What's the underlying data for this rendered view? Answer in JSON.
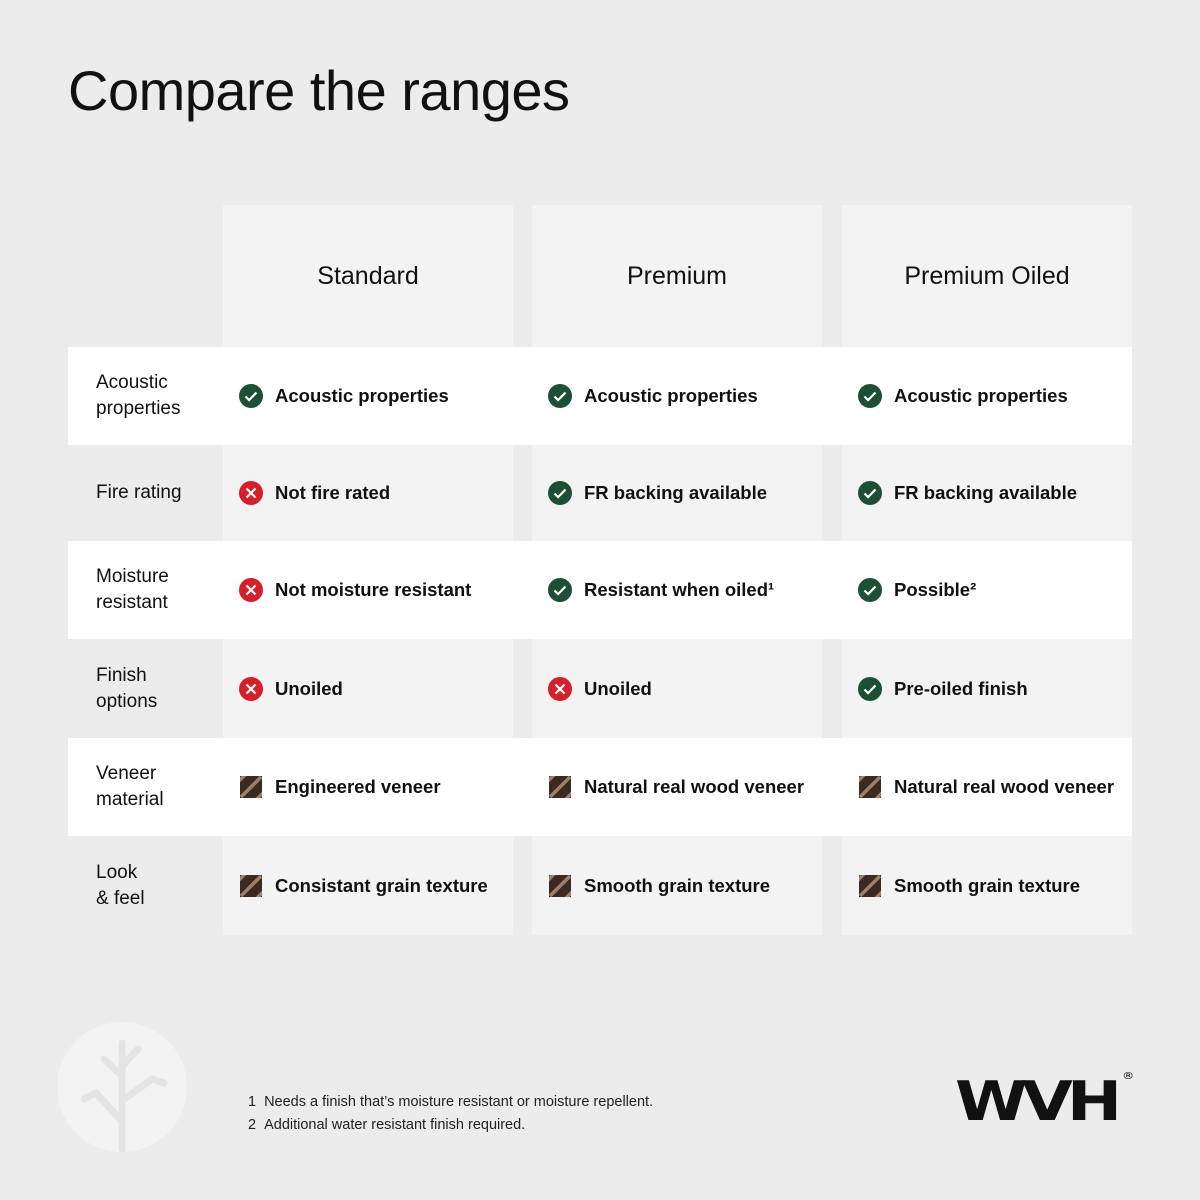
{
  "header": {
    "title": "Compare the ranges"
  },
  "table": {
    "columns": [
      "Standard",
      "Premium",
      "Premium Oiled"
    ],
    "rows": [
      {
        "label": "Acoustic\nproperties",
        "cells": [
          {
            "icon": "check",
            "text": "Acoustic properties"
          },
          {
            "icon": "check",
            "text": "Acoustic properties"
          },
          {
            "icon": "check",
            "text": "Acoustic properties"
          }
        ]
      },
      {
        "label": "Fire rating",
        "cells": [
          {
            "icon": "cross",
            "text": "Not fire rated"
          },
          {
            "icon": "check",
            "text": "FR backing available"
          },
          {
            "icon": "check",
            "text": "FR backing available"
          }
        ]
      },
      {
        "label": "Moisture\nresistant",
        "cells": [
          {
            "icon": "cross",
            "text": "Not moisture resistant"
          },
          {
            "icon": "check",
            "text": "Resistant when oiled¹"
          },
          {
            "icon": "check",
            "text": "Possible²"
          }
        ]
      },
      {
        "label": "Finish\noptions",
        "cells": [
          {
            "icon": "cross",
            "text": "Unoiled"
          },
          {
            "icon": "cross",
            "text": "Unoiled"
          },
          {
            "icon": "check",
            "text": "Pre-oiled finish"
          }
        ]
      },
      {
        "label": "Veneer\nmaterial",
        "cells": [
          {
            "icon": "wood",
            "text": "Engineered veneer"
          },
          {
            "icon": "wood",
            "text": "Natural real wood veneer"
          },
          {
            "icon": "wood",
            "text": "Natural real wood veneer"
          }
        ]
      },
      {
        "label": "Look\n& feel",
        "cells": [
          {
            "icon": "wood",
            "text": "Consistant grain texture"
          },
          {
            "icon": "wood",
            "text": "Smooth grain texture"
          },
          {
            "icon": "wood",
            "text": "Smooth grain texture"
          }
        ]
      }
    ]
  },
  "footnotes": [
    {
      "number": "1",
      "text": "Needs a finish that’s moisture resistant or moisture repellent."
    },
    {
      "number": "2",
      "text": "Additional water resistant finish required."
    }
  ],
  "logo": {
    "text": "WVH",
    "mark": "®"
  }
}
